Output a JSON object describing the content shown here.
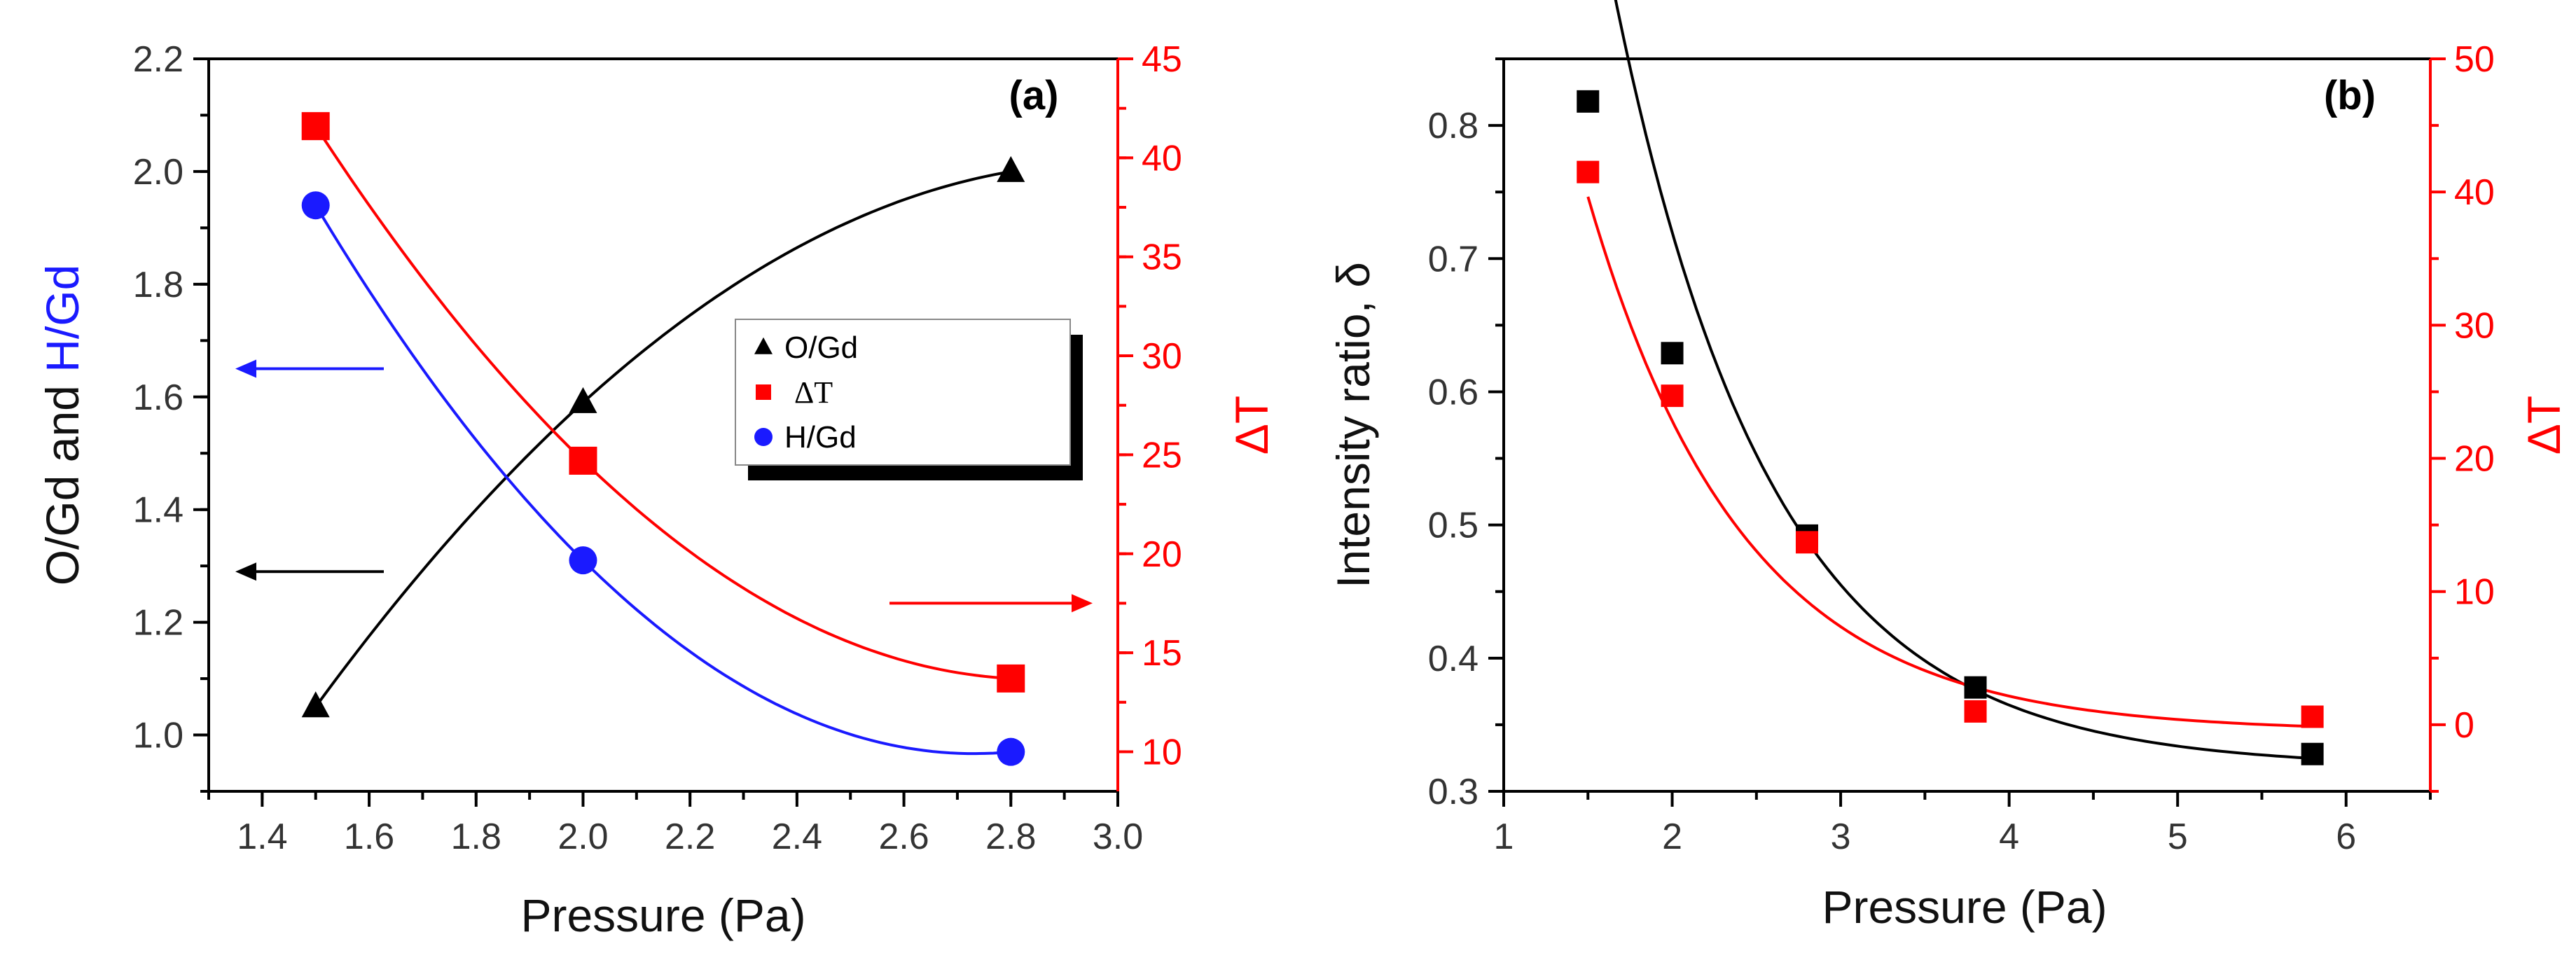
{
  "chart_data": [
    {
      "panel": "(a)",
      "type": "line",
      "xlabel": "Pressure (Pa)",
      "xlim": [
        1.3,
        3.0
      ],
      "xticks": [
        "1.4",
        "1.6",
        "1.8",
        "2.0",
        "2.2",
        "2.4",
        "2.6",
        "2.8",
        "3.0"
      ],
      "ylabel_left": {
        "part1": "O/Gd and ",
        "part2": "H/Gd",
        "color1": "#111111",
        "color2": "#1a1aff"
      },
      "ylim_left": [
        0.9,
        2.2
      ],
      "yticks_left": [
        "1.0",
        "1.2",
        "1.4",
        "1.6",
        "1.8",
        "2.0",
        "2.2"
      ],
      "ylabel_right": "ΔT",
      "ylim_right": [
        8,
        45
      ],
      "yticks_right": [
        "10",
        "15",
        "20",
        "25",
        "30",
        "35",
        "40",
        "45"
      ],
      "series": [
        {
          "name": "O/Gd",
          "axis": "left",
          "marker": "triangle",
          "color": "#000000",
          "x": [
            1.5,
            2.0,
            2.8
          ],
          "y": [
            1.05,
            1.59,
            2.0
          ]
        },
        {
          "name": "ΔT",
          "axis": "right",
          "marker": "square",
          "color": "#ff0000",
          "x": [
            1.5,
            2.0,
            2.8
          ],
          "y": [
            41.6,
            24.7,
            13.7
          ]
        },
        {
          "name": "H/Gd",
          "axis": "left",
          "marker": "circle",
          "color": "#1a1aff",
          "x": [
            1.5,
            2.0,
            2.8
          ],
          "y": [
            1.94,
            1.31,
            0.97
          ]
        }
      ],
      "arrows": [
        {
          "direction": "left",
          "axis": "left",
          "color": "#1a1aff",
          "y": 1.65
        },
        {
          "direction": "left",
          "axis": "left",
          "color": "#000000",
          "y": 1.29
        },
        {
          "direction": "right",
          "axis": "right",
          "color": "#ff0000",
          "y": 17.5
        }
      ],
      "legend": [
        {
          "label": "O/Gd",
          "marker": "triangle",
          "color": "#000000"
        },
        {
          "label": "ΔT",
          "marker": "square",
          "color": "#ff0000"
        },
        {
          "label": "H/Gd",
          "marker": "circle",
          "color": "#1a1aff"
        }
      ],
      "legend_position": "center-right"
    },
    {
      "panel": "(b)",
      "type": "scatter",
      "xlabel": "Pressure (Pa)",
      "xlim": [
        1,
        6.5
      ],
      "xticks": [
        "1",
        "2",
        "3",
        "4",
        "5",
        "6"
      ],
      "ylabel_left": "Intensity ratio, δ",
      "ylim_left": [
        0.3,
        0.85
      ],
      "yticks_left": [
        "0.3",
        "0.4",
        "0.5",
        "0.6",
        "0.7",
        "0.8"
      ],
      "ylabel_right": "ΔT",
      "ylim_right": [
        -5,
        50
      ],
      "yticks_right": [
        "0",
        "10",
        "20",
        "30",
        "40",
        "50"
      ],
      "series": [
        {
          "name": "Intensity ratio",
          "axis": "left",
          "marker": "square",
          "color": "#000000",
          "x": [
            1.5,
            2.0,
            2.8,
            3.8,
            5.8
          ],
          "y": [
            0.818,
            0.629,
            0.492,
            0.378,
            0.328
          ]
        },
        {
          "name": "ΔT",
          "axis": "right",
          "marker": "square",
          "color": "#ff0000",
          "x": [
            1.5,
            2.0,
            2.8,
            3.8,
            5.8
          ],
          "y": [
            41.5,
            24.7,
            13.7,
            1.0,
            0.6
          ]
        }
      ]
    }
  ]
}
